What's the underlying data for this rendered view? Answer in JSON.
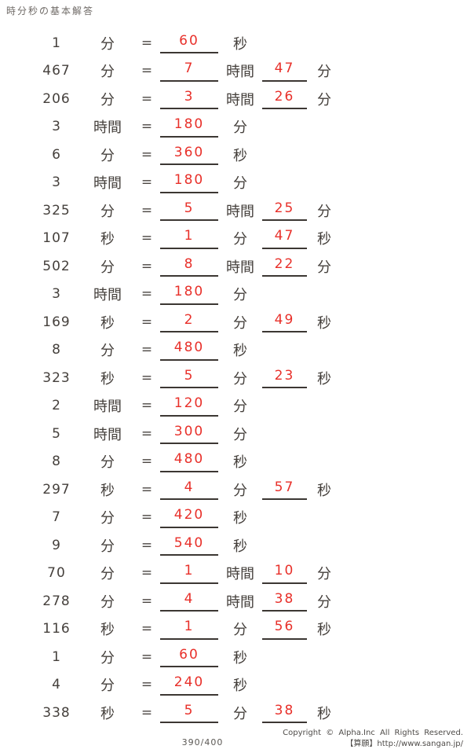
{
  "page": {
    "title": "時分秒の基本解答",
    "page_indicator": "390/400",
    "footer": {
      "copyright": "Copyright © Alpha.Inc All Rights Reserved.",
      "site": "【算願】http://www.sangan.jp/"
    },
    "colors": {
      "answer_red": "#e8302a",
      "ink": "#45403c",
      "underline": "#3c3733",
      "muted_gray": "#5a5753"
    }
  },
  "labels": {
    "equals": "="
  },
  "rows": [
    {
      "given": "1",
      "given_unit": "分",
      "answer1": "60",
      "answer1_unit": "秒",
      "answer2": "",
      "answer2_unit": ""
    },
    {
      "given": "467",
      "given_unit": "分",
      "answer1": "7",
      "answer1_unit": "時間",
      "answer2": "47",
      "answer2_unit": "分"
    },
    {
      "given": "206",
      "given_unit": "分",
      "answer1": "3",
      "answer1_unit": "時間",
      "answer2": "26",
      "answer2_unit": "分"
    },
    {
      "given": "3",
      "given_unit": "時間",
      "answer1": "180",
      "answer1_unit": "分",
      "answer2": "",
      "answer2_unit": ""
    },
    {
      "given": "6",
      "given_unit": "分",
      "answer1": "360",
      "answer1_unit": "秒",
      "answer2": "",
      "answer2_unit": ""
    },
    {
      "given": "3",
      "given_unit": "時間",
      "answer1": "180",
      "answer1_unit": "分",
      "answer2": "",
      "answer2_unit": ""
    },
    {
      "given": "325",
      "given_unit": "分",
      "answer1": "5",
      "answer1_unit": "時間",
      "answer2": "25",
      "answer2_unit": "分"
    },
    {
      "given": "107",
      "given_unit": "秒",
      "answer1": "1",
      "answer1_unit": "分",
      "answer2": "47",
      "answer2_unit": "秒"
    },
    {
      "given": "502",
      "given_unit": "分",
      "answer1": "8",
      "answer1_unit": "時間",
      "answer2": "22",
      "answer2_unit": "分"
    },
    {
      "given": "3",
      "given_unit": "時間",
      "answer1": "180",
      "answer1_unit": "分",
      "answer2": "",
      "answer2_unit": ""
    },
    {
      "given": "169",
      "given_unit": "秒",
      "answer1": "2",
      "answer1_unit": "分",
      "answer2": "49",
      "answer2_unit": "秒"
    },
    {
      "given": "8",
      "given_unit": "分",
      "answer1": "480",
      "answer1_unit": "秒",
      "answer2": "",
      "answer2_unit": ""
    },
    {
      "given": "323",
      "given_unit": "秒",
      "answer1": "5",
      "answer1_unit": "分",
      "answer2": "23",
      "answer2_unit": "秒"
    },
    {
      "given": "2",
      "given_unit": "時間",
      "answer1": "120",
      "answer1_unit": "分",
      "answer2": "",
      "answer2_unit": ""
    },
    {
      "given": "5",
      "given_unit": "時間",
      "answer1": "300",
      "answer1_unit": "分",
      "answer2": "",
      "answer2_unit": ""
    },
    {
      "given": "8",
      "given_unit": "分",
      "answer1": "480",
      "answer1_unit": "秒",
      "answer2": "",
      "answer2_unit": ""
    },
    {
      "given": "297",
      "given_unit": "秒",
      "answer1": "4",
      "answer1_unit": "分",
      "answer2": "57",
      "answer2_unit": "秒"
    },
    {
      "given": "7",
      "given_unit": "分",
      "answer1": "420",
      "answer1_unit": "秒",
      "answer2": "",
      "answer2_unit": ""
    },
    {
      "given": "9",
      "given_unit": "分",
      "answer1": "540",
      "answer1_unit": "秒",
      "answer2": "",
      "answer2_unit": ""
    },
    {
      "given": "70",
      "given_unit": "分",
      "answer1": "1",
      "answer1_unit": "時間",
      "answer2": "10",
      "answer2_unit": "分"
    },
    {
      "given": "278",
      "given_unit": "分",
      "answer1": "4",
      "answer1_unit": "時間",
      "answer2": "38",
      "answer2_unit": "分"
    },
    {
      "given": "116",
      "given_unit": "秒",
      "answer1": "1",
      "answer1_unit": "分",
      "answer2": "56",
      "answer2_unit": "秒"
    },
    {
      "given": "1",
      "given_unit": "分",
      "answer1": "60",
      "answer1_unit": "秒",
      "answer2": "",
      "answer2_unit": ""
    },
    {
      "given": "4",
      "given_unit": "分",
      "answer1": "240",
      "answer1_unit": "秒",
      "answer2": "",
      "answer2_unit": ""
    },
    {
      "given": "338",
      "given_unit": "秒",
      "answer1": "5",
      "answer1_unit": "分",
      "answer2": "38",
      "answer2_unit": "秒"
    }
  ]
}
